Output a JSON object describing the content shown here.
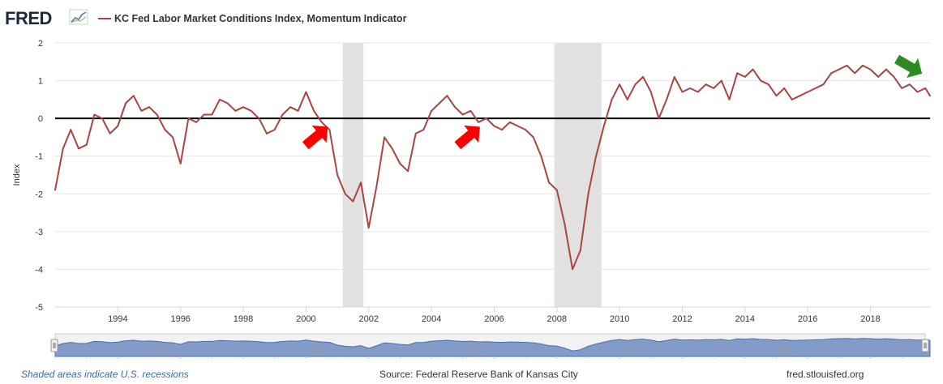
{
  "header": {
    "logo": "FRED",
    "legend_label": "KC Fed Labor Market Conditions Index, Momentum Indicator"
  },
  "footer": {
    "recession_note": "Shaded areas indicate U.S. recessions",
    "source": "Source: Federal Reserve Bank of Kansas City",
    "site": "fred.stlouisfed.org"
  },
  "navigator": {
    "year_labels": [
      "1995",
      "2000",
      "2005",
      "2010",
      "2015"
    ]
  },
  "colors": {
    "series": "#a94442",
    "recession": "#e1e1e1",
    "zero_line": "#000000",
    "navigator_fill": "#6e8cc2",
    "red_arrow": "#ff0000",
    "green_arrow": "#2e8b22"
  },
  "annotations": [
    {
      "type": "arrow",
      "color": "red",
      "direction": "up-right",
      "x": 2000.3,
      "y": -0.5
    },
    {
      "type": "arrow",
      "color": "red",
      "direction": "up-right",
      "x": 2005.15,
      "y": -0.5
    },
    {
      "type": "arrow",
      "color": "green",
      "direction": "down-right",
      "x": 2019.2,
      "y": 1.4
    }
  ],
  "chart_data": {
    "type": "line",
    "title": "",
    "xlabel": "",
    "ylabel": "Index",
    "xlim": [
      1992.0,
      2019.9
    ],
    "ylim": [
      -5,
      2
    ],
    "yticks": [
      2,
      1,
      0,
      -1,
      -2,
      -3,
      -4,
      -5
    ],
    "xticks": [
      1994,
      1996,
      1998,
      2000,
      2002,
      2004,
      2006,
      2008,
      2010,
      2012,
      2014,
      2016,
      2018
    ],
    "grid": "horizontal",
    "zero_line": true,
    "recessions": [
      [
        2001.17,
        2001.83
      ],
      [
        2007.92,
        2009.42
      ]
    ],
    "series": [
      {
        "name": "KC Fed Labor Market Conditions Index, Momentum Indicator",
        "x": [
          1992.0,
          1992.25,
          1992.5,
          1992.75,
          1993.0,
          1993.25,
          1993.5,
          1993.75,
          1994.0,
          1994.25,
          1994.5,
          1994.75,
          1995.0,
          1995.25,
          1995.5,
          1995.75,
          1996.0,
          1996.25,
          1996.5,
          1996.75,
          1997.0,
          1997.25,
          1997.5,
          1997.75,
          1998.0,
          1998.25,
          1998.5,
          1998.75,
          1999.0,
          1999.25,
          1999.5,
          1999.75,
          2000.0,
          2000.25,
          2000.5,
          2000.75,
          2001.0,
          2001.25,
          2001.5,
          2001.75,
          2002.0,
          2002.25,
          2002.5,
          2002.75,
          2003.0,
          2003.25,
          2003.5,
          2003.75,
          2004.0,
          2004.25,
          2004.5,
          2004.75,
          2005.0,
          2005.25,
          2005.5,
          2005.75,
          2006.0,
          2006.25,
          2006.5,
          2006.75,
          2007.0,
          2007.25,
          2007.5,
          2007.75,
          2008.0,
          2008.25,
          2008.5,
          2008.75,
          2009.0,
          2009.25,
          2009.5,
          2009.75,
          2010.0,
          2010.25,
          2010.5,
          2010.75,
          2011.0,
          2011.25,
          2011.5,
          2011.75,
          2012.0,
          2012.25,
          2012.5,
          2012.75,
          2013.0,
          2013.25,
          2013.5,
          2013.75,
          2014.0,
          2014.25,
          2014.5,
          2014.75,
          2015.0,
          2015.25,
          2015.5,
          2015.75,
          2016.0,
          2016.25,
          2016.5,
          2016.75,
          2017.0,
          2017.25,
          2017.5,
          2017.75,
          2018.0,
          2018.25,
          2018.5,
          2018.75,
          2019.0,
          2019.25,
          2019.5,
          2019.75,
          2019.9
        ],
        "values": [
          -1.9,
          -0.8,
          -0.3,
          -0.8,
          -0.7,
          0.1,
          0.0,
          -0.4,
          -0.2,
          0.4,
          0.6,
          0.2,
          0.3,
          0.1,
          -0.3,
          -0.5,
          -1.2,
          0.0,
          -0.1,
          0.1,
          0.1,
          0.5,
          0.4,
          0.2,
          0.3,
          0.2,
          0.0,
          -0.4,
          -0.3,
          0.1,
          0.3,
          0.2,
          0.7,
          0.2,
          -0.1,
          -0.3,
          -1.5,
          -2.0,
          -2.2,
          -1.7,
          -2.9,
          -1.8,
          -0.5,
          -0.8,
          -1.2,
          -1.4,
          -0.4,
          -0.3,
          0.2,
          0.4,
          0.6,
          0.3,
          0.1,
          0.2,
          -0.1,
          0.0,
          -0.2,
          -0.3,
          -0.1,
          -0.2,
          -0.3,
          -0.5,
          -1.0,
          -1.7,
          -1.9,
          -2.8,
          -4.0,
          -3.5,
          -2.0,
          -1.0,
          -0.2,
          0.5,
          0.9,
          0.5,
          0.9,
          1.1,
          0.7,
          0.0,
          0.5,
          1.1,
          0.7,
          0.8,
          0.7,
          0.9,
          0.8,
          1.0,
          0.5,
          1.2,
          1.1,
          1.3,
          1.0,
          0.9,
          0.6,
          0.8,
          0.5,
          0.6,
          0.7,
          0.8,
          0.9,
          1.2,
          1.3,
          1.4,
          1.2,
          1.4,
          1.3,
          1.1,
          1.3,
          1.1,
          0.8,
          0.9,
          0.7,
          0.8,
          0.6
        ]
      }
    ]
  }
}
